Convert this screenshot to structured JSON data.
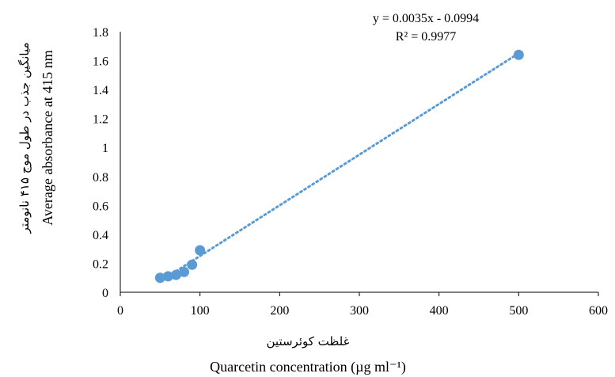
{
  "chart_data": {
    "type": "scatter",
    "equation": "y = 0.0035x - 0.0994",
    "r_squared_label": "R² = 0.9977",
    "xlabel_fa": "غلظت کوئرستین",
    "xlabel_en": "Quarcetin concentration (µg ml⁻¹)",
    "ylabel_fa": "میانگین جذب در طول موج ۴۱۵ نانومتر",
    "ylabel_en": "Average absorbance at  415 nm",
    "xlim": [
      0,
      600
    ],
    "ylim": [
      0,
      1.8
    ],
    "x_ticks": [
      0,
      100,
      200,
      300,
      400,
      500,
      600
    ],
    "x_tick_labels": [
      "0",
      "100",
      "200",
      "300",
      "400",
      "500",
      "600"
    ],
    "y_ticks": [
      0,
      0.2,
      0.4,
      0.6,
      0.8,
      1,
      1.2,
      1.4,
      1.6,
      1.8
    ],
    "y_tick_labels": [
      "0",
      "0.2",
      "0.4",
      "0.6",
      "0.8",
      "1",
      "1.2",
      "1.4",
      "1.6",
      "1.8"
    ],
    "trendline": {
      "type": "linear",
      "slope": 0.0035,
      "intercept": -0.0994,
      "x_range": [
        50,
        500
      ],
      "style": "dotted"
    },
    "grid": false,
    "legend": "none",
    "series": [
      {
        "x": [
          50,
          60,
          70,
          80,
          90,
          100,
          500
        ],
        "y": [
          0.1,
          0.11,
          0.12,
          0.14,
          0.19,
          0.29,
          1.64
        ],
        "color": "#5B9BD5"
      }
    ]
  }
}
